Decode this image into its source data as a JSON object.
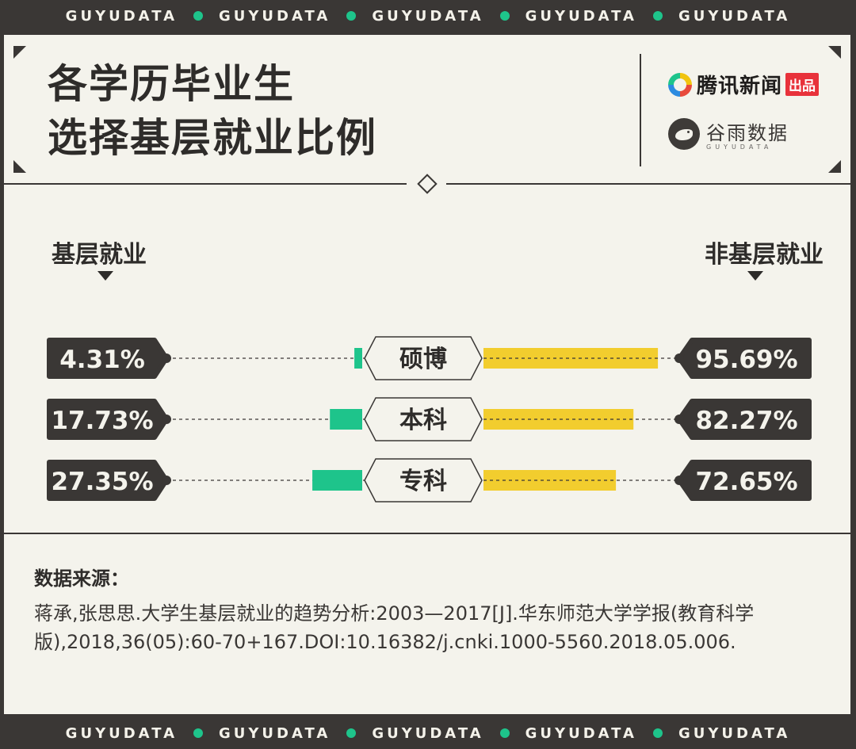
{
  "ticker": {
    "word": "GUYUDATA",
    "repeat": 5
  },
  "header": {
    "title_line1": "各学历毕业生",
    "title_line2": "选择基层就业比例",
    "brand1_name": "腾讯新闻",
    "brand1_badge": "出品",
    "brand2_name": "谷雨数据",
    "brand2_sub": "GUYUDATA"
  },
  "labels": {
    "left": "基层就业",
    "right": "非基层就业"
  },
  "colors": {
    "grassroots": "#1ec48b",
    "non_grassroots": "#f2cd2e",
    "dark": "#3a3735",
    "background": "#f4f3ec"
  },
  "chart_data": {
    "type": "bar",
    "categories": [
      "硕博",
      "本科",
      "专科"
    ],
    "series": [
      {
        "name": "基层就业",
        "values": [
          4.31,
          17.73,
          27.35
        ]
      },
      {
        "name": "非基层就业",
        "values": [
          95.69,
          82.27,
          72.65
        ]
      }
    ],
    "value_labels": {
      "left": [
        "4.31%",
        "17.73%",
        "27.35%"
      ],
      "right": [
        "95.69%",
        "82.27%",
        "72.65%"
      ]
    },
    "unit": "%",
    "ylim": [
      0,
      100
    ]
  },
  "source": {
    "title": "数据来源：",
    "text": "蒋承,张思思.大学生基层就业的趋势分析:2003—2017[J].华东师范大学学报(教育科学版),2018,36(05):60-70+167.DOI:10.16382/j.cnki.1000-5560.2018.05.006."
  }
}
